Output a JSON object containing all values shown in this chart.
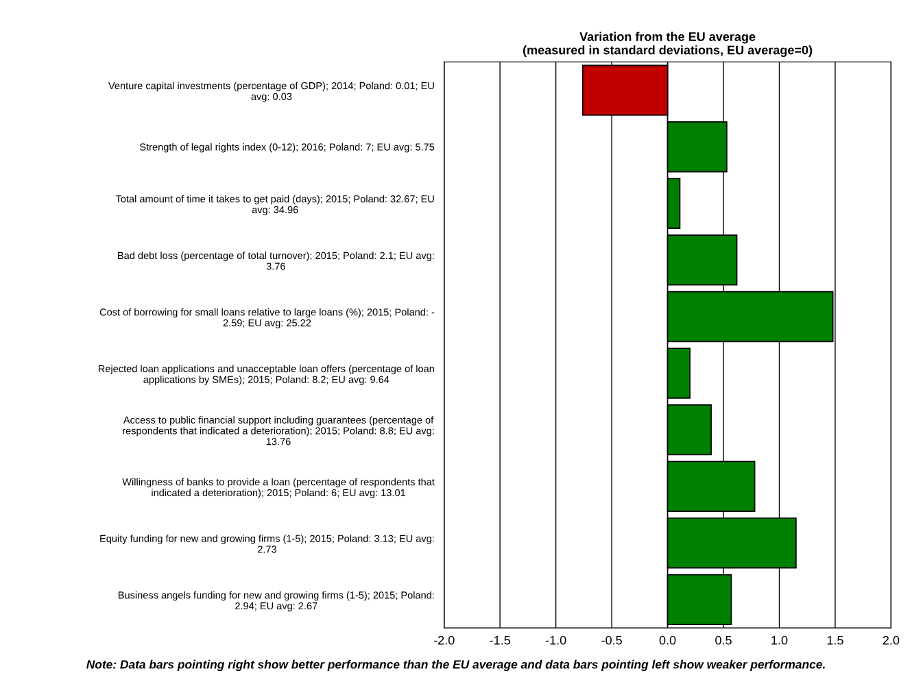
{
  "chart_data": {
    "type": "bar",
    "orientation": "horizontal",
    "title": "Variation from the EU average\n(measured in standard deviations, EU average=0)",
    "categories": [
      "Venture capital investments (percentage of GDP); 2014; Poland: 0.01; EU\navg: 0.03",
      "Strength of legal rights index (0-12); 2016; Poland: 7; EU avg: 5.75",
      "Total amount of time it takes to get paid (days); 2015; Poland: 32.67; EU\navg: 34.96",
      "Bad debt loss (percentage of total turnover); 2015; Poland: 2.1; EU avg:\n3.76",
      "Cost of borrowing for small loans relative to large loans (%); 2015; Poland: -\n2.59; EU avg: 25.22",
      "Rejected loan applications and unacceptable loan offers (percentage of loan\napplications by SMEs); 2015; Poland: 8.2; EU avg: 9.64",
      "Access to public financial support including guarantees (percentage of\nrespondents that indicated a deterioration); 2015; Poland: 8.8; EU avg:\n13.76",
      "Willingness of banks to provide a loan (percentage of respondents that\nindicated a deterioration); 2015; Poland: 6; EU avg: 13.01",
      "Equity funding for new and growing firms (1-5); 2015; Poland: 3.13; EU avg:\n2.73",
      "Business angels funding for new and growing firms (1-5); 2015; Poland:\n2.94; EU avg: 2.67"
    ],
    "values": [
      -0.76,
      0.53,
      0.11,
      0.62,
      1.48,
      0.2,
      0.39,
      0.78,
      1.15,
      0.57
    ],
    "colors": [
      "#c00000",
      "#008000",
      "#008000",
      "#008000",
      "#008000",
      "#008000",
      "#008000",
      "#008000",
      "#008000",
      "#008000"
    ],
    "xlim": [
      -2,
      2
    ],
    "xticks": [
      {
        "value": -2,
        "label": "-2.0"
      },
      {
        "value": -1.5,
        "label": "-1.5"
      },
      {
        "value": -1,
        "label": "-1.0"
      },
      {
        "value": -0.5,
        "label": "-0.5"
      },
      {
        "value": 0,
        "label": "0.0"
      },
      {
        "value": 0.5,
        "label": "0.5"
      },
      {
        "value": 1,
        "label": "1.0"
      },
      {
        "value": 1.5,
        "label": "1.5"
      },
      {
        "value": 2,
        "label": "2.0"
      }
    ],
    "grid": "x",
    "annotations": [
      "Note: Data bars pointing right show better performance than the EU average and data bars pointing left show weaker performance."
    ]
  }
}
